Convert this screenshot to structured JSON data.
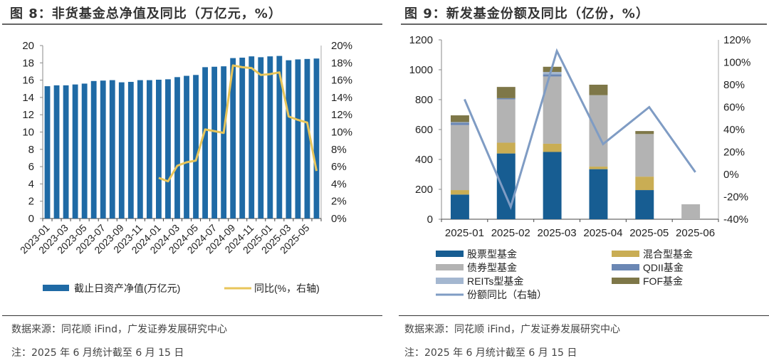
{
  "left": {
    "title": "图 8：非货基金总净值及同比（万亿元，%）",
    "source": "数据来源：同花顺 iFind，广发证券发展研究中心",
    "note": "注：2025 年 6 月统计截至 6 月 15 日"
  },
  "right": {
    "title": "图 9：新发基金份额及同比（亿份，%）",
    "source": "数据来源：同花顺 iFind，广发证券发展研究中心",
    "note": "注：2025 年 6 月统计截至 6 月 15 日"
  },
  "chart_data": [
    {
      "type": "bar",
      "categories": [
        "2023-01",
        "2023-02",
        "2023-03",
        "2023-04",
        "2023-05",
        "2023-06",
        "2023-07",
        "2023-08",
        "2023-09",
        "2023-10",
        "2023-11",
        "2023-12",
        "2024-01",
        "2024-02",
        "2024-03",
        "2024-04",
        "2024-05",
        "2024-06",
        "2024-07",
        "2024-08",
        "2024-09",
        "2024-10",
        "2024-11",
        "2024-12",
        "2025-01",
        "2025-02",
        "2025-03",
        "2025-04",
        "2025-05",
        "2025-06"
      ],
      "tick_labels": [
        "2023-01",
        "2023-03",
        "2023-05",
        "2023-07",
        "2023-09",
        "2023-11",
        "2024-01",
        "2024-03",
        "2024-05",
        "2024-07",
        "2024-09",
        "2024-11",
        "2025-01",
        "2025-03",
        "2025-05"
      ],
      "series": [
        {
          "name": "截止日资产净值(万亿元)",
          "kind": "bar",
          "axis": "left",
          "color": "#1f6aa5",
          "values": [
            15.3,
            15.4,
            15.4,
            15.5,
            15.6,
            15.9,
            15.95,
            16.0,
            15.75,
            15.8,
            16.0,
            16.0,
            16.05,
            16.1,
            16.35,
            16.5,
            16.6,
            17.5,
            17.55,
            17.6,
            18.55,
            18.6,
            18.75,
            18.65,
            18.75,
            18.8,
            18.3,
            18.4,
            18.45,
            18.5
          ]
        },
        {
          "name": "同比(%，右轴)",
          "kind": "line",
          "axis": "right",
          "color": "#e8c55a",
          "values": [
            null,
            null,
            null,
            null,
            null,
            null,
            null,
            null,
            null,
            null,
            null,
            null,
            4.7,
            4.3,
            6.1,
            6.5,
            6.7,
            10.3,
            10.1,
            9.9,
            17.7,
            17.5,
            17.4,
            16.6,
            16.7,
            16.9,
            11.8,
            11.4,
            11.1,
            5.5
          ]
        }
      ],
      "ylim": [
        0,
        20
      ],
      "yticks": [
        "0",
        "2",
        "4",
        "6",
        "8",
        "10",
        "12",
        "14",
        "16",
        "18",
        "20"
      ],
      "y2lim": [
        0,
        20
      ],
      "y2ticks": [
        "0%",
        "2%",
        "4%",
        "6%",
        "8%",
        "10%",
        "12%",
        "14%",
        "16%",
        "18%",
        "20%"
      ],
      "legend": "bottom",
      "grid": false
    },
    {
      "type": "bar",
      "stacked": true,
      "categories": [
        "2025-01",
        "2025-02",
        "2025-03",
        "2025-04",
        "2025-05",
        "2025-06"
      ],
      "series": [
        {
          "name": "股票型基金",
          "color": "#175d92",
          "values": [
            165,
            440,
            450,
            335,
            195,
            0
          ]
        },
        {
          "name": "混合型基金",
          "color": "#c9ad54",
          "values": [
            30,
            72,
            55,
            17,
            90,
            0
          ]
        },
        {
          "name": "债券型基金",
          "color": "#b3b3b3",
          "values": [
            435,
            290,
            450,
            478,
            285,
            100
          ]
        },
        {
          "name": "QDII基金",
          "color": "#6b87b4",
          "values": [
            15,
            8,
            15,
            0,
            0,
            0
          ]
        },
        {
          "name": "REITs型基金",
          "color": "#a4b7d0",
          "values": [
            5,
            0,
            15,
            0,
            0,
            0
          ]
        },
        {
          "name": "FOF基金",
          "color": "#7e7748",
          "values": [
            45,
            75,
            35,
            70,
            20,
            0
          ]
        }
      ],
      "line": {
        "name": "份额同比（右轴）",
        "color": "#7f9cc4",
        "values": [
          67,
          -29,
          110,
          27,
          60,
          2
        ]
      },
      "ylim": [
        0,
        1200
      ],
      "yticks": [
        "0",
        "200",
        "400",
        "600",
        "800",
        "1000",
        "1200"
      ],
      "y2lim": [
        -40,
        120
      ],
      "y2ticks": [
        "-40%",
        "-20%",
        "0%",
        "20%",
        "40%",
        "60%",
        "80%",
        "100%",
        "120%"
      ],
      "legend": "bottom",
      "grid": false
    }
  ]
}
